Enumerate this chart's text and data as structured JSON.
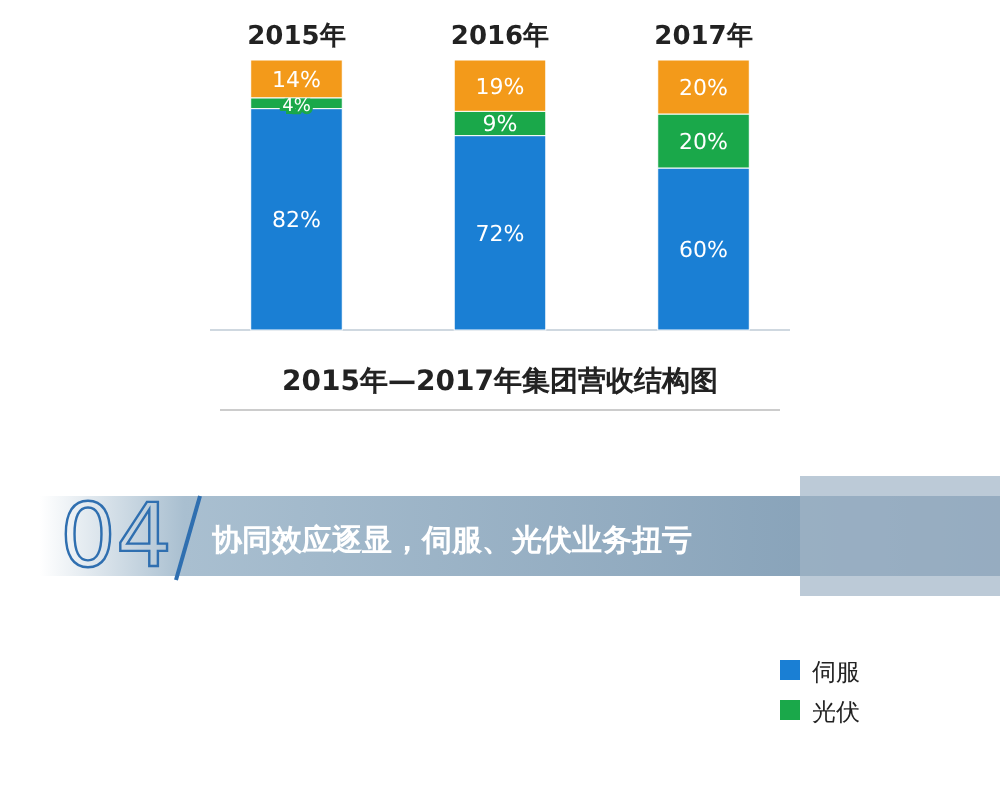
{
  "chart_data": {
    "type": "bar",
    "title": "2015年—2017年集团营收结构图",
    "categories": [
      "2015年",
      "2016年",
      "2017年"
    ],
    "stacked": true,
    "tick_labels": "x",
    "legend": "bottom right",
    "series": [
      {
        "name": "伺服",
        "color": "#1a7fd4",
        "values": [
          82,
          72,
          60
        ],
        "value_labels": [
          "82%",
          "72%",
          "60%"
        ]
      },
      {
        "name": "光伏",
        "color": "#1aa84a",
        "values": [
          4,
          9,
          20
        ],
        "value_labels": [
          "4%",
          "9%",
          "20%"
        ]
      },
      {
        "color": "#f39a1a",
        "values": [
          14,
          19,
          20
        ],
        "value_labels": [
          "14%",
          "19%",
          "20%"
        ]
      }
    ],
    "annotations": [
      "04",
      "协同效应逐显，伺服、光伏业务扭亏"
    ]
  }
}
